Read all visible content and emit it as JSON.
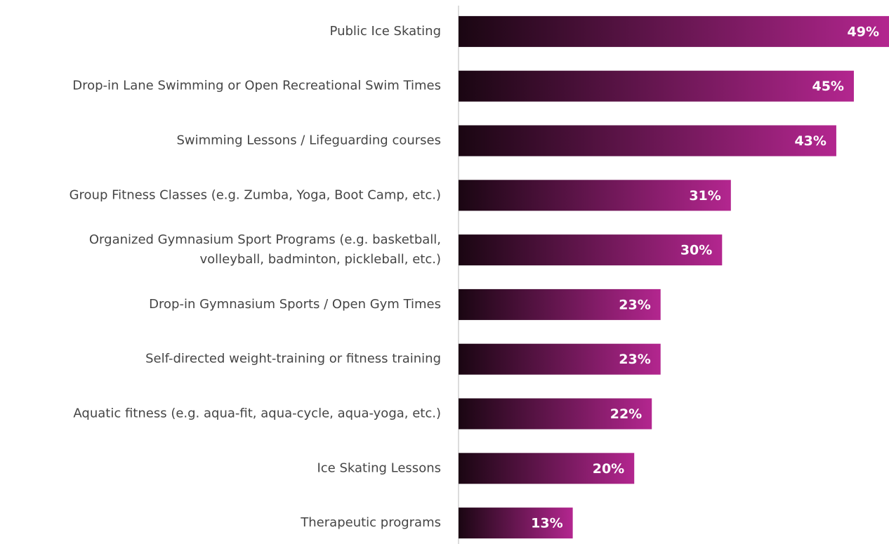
{
  "chart_data": {
    "type": "hbar",
    "categories": [
      "Public Ice Skating",
      "Drop-in Lane Swimming or Open Recreational Swim Times",
      "Swimming Lessons / Lifeguarding courses",
      "Group Fitness Classes (e.g. Zumba, Yoga, Boot Camp, etc.)",
      [
        "Organized Gymnasium Sport Programs (e.g. basketball,",
        "volleyball, badminton, pickleball, etc.)"
      ],
      "Drop-in Gymnasium Sports / Open Gym Times",
      "Self-directed weight-training or fitness training",
      "Aquatic fitness (e.g. aqua-fit, aqua-cycle, aqua-yoga, etc.)",
      "Ice Skating Lessons",
      "Therapeutic programs"
    ],
    "values": [
      49,
      45,
      43,
      31,
      30,
      23,
      23,
      22,
      20,
      13
    ],
    "value_labels": [
      "49%",
      "45%",
      "43%",
      "31%",
      "30%",
      "23%",
      "23%",
      "22%",
      "20%",
      "13%"
    ],
    "gradient": [
      "#1a0612",
      "#b3268f"
    ]
  }
}
